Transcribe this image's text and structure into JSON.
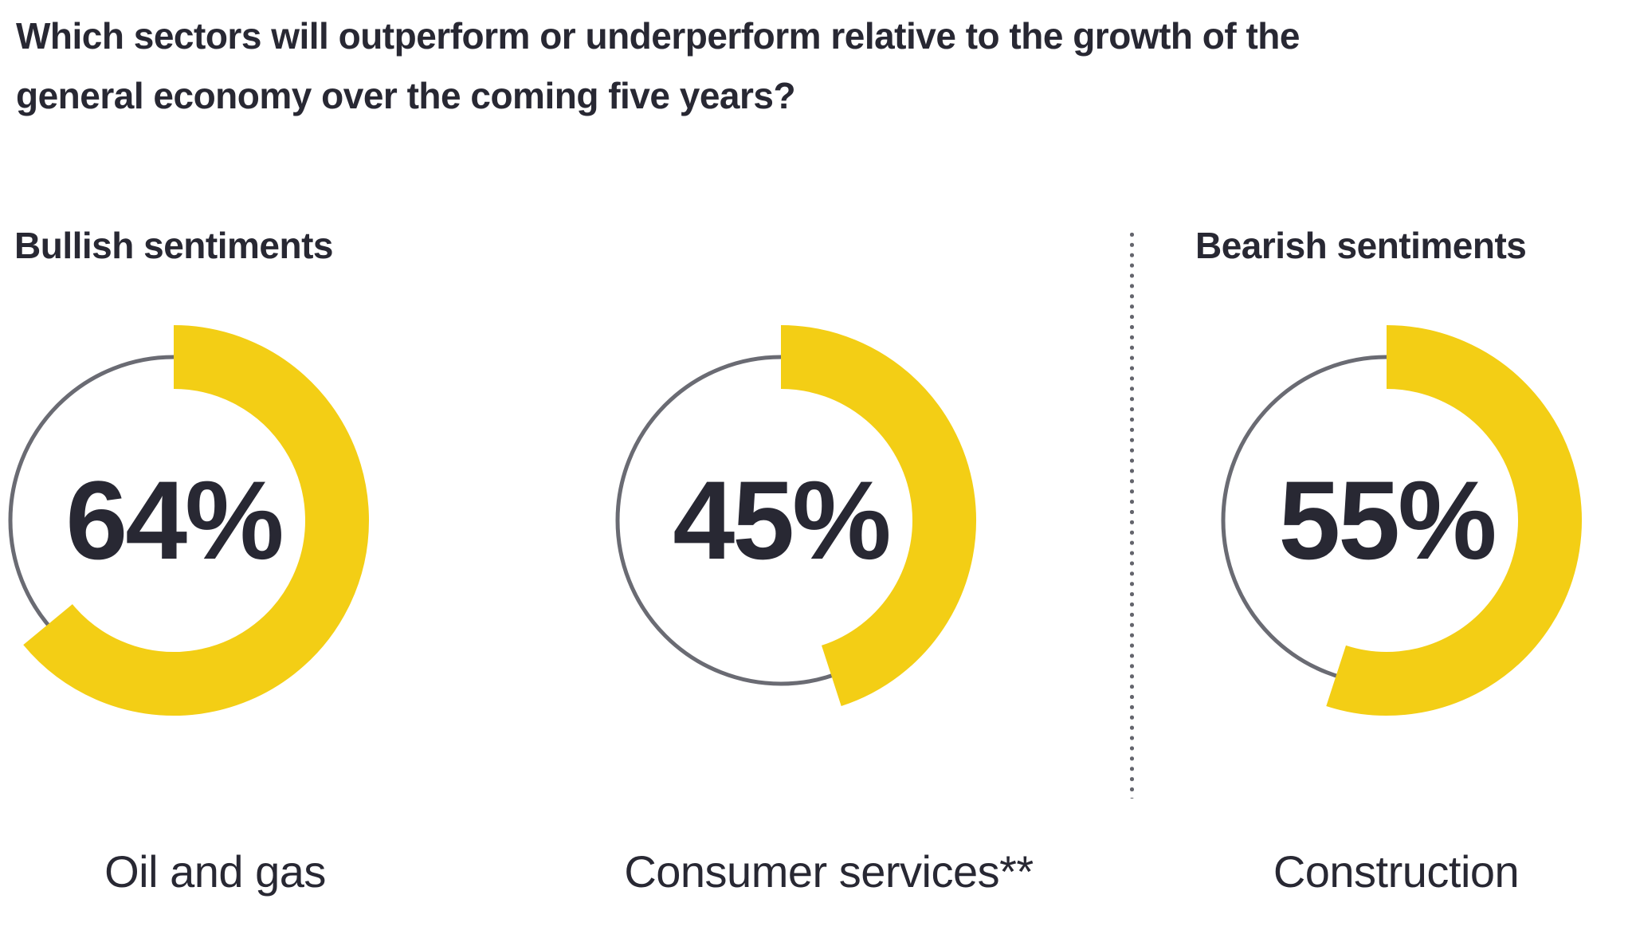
{
  "title": {
    "lines": [
      "Which sectors will outperform or underperform relative to the growth of the",
      "general economy over the coming five years?"
    ]
  },
  "sections": [
    {
      "label": "Bullish sentiments"
    },
    {
      "label": "Bearish sentiments"
    }
  ],
  "chart_data": {
    "type": "pie",
    "subtype": "donut-gauge-ring",
    "title": "Which sectors will outperform or underperform relative to the growth of the general economy over the coming five years?",
    "units": "%",
    "start_position": "12-oclock",
    "direction": "clockwise",
    "legend_position": "none",
    "charts": [
      {
        "group": "Bullish sentiments",
        "label": "Oil and gas",
        "value": 64,
        "value_label": "64%"
      },
      {
        "group": "Bullish sentiments",
        "label": "Consumer services**",
        "value": 45,
        "value_label": "45%"
      },
      {
        "group": "Bearish sentiments",
        "label": "Construction",
        "value": 55,
        "value_label": "55%"
      }
    ]
  },
  "colors": {
    "accent_yellow": "#F3CE15",
    "ring_gray": "#6A6B73",
    "divider_dot_gray": "#63646C",
    "text_dark": "#282833",
    "background": "#FFFFFF"
  }
}
